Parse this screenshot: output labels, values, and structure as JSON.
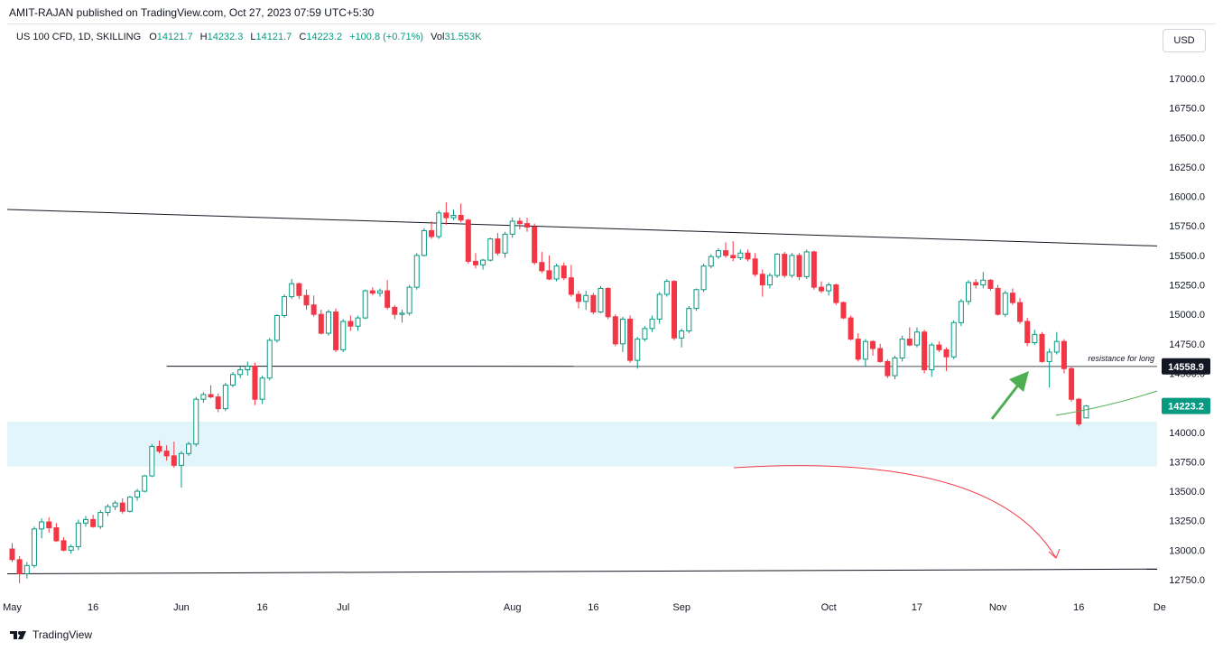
{
  "header": {
    "published": "AMIT-RAJAN published on TradingView.com, Oct 27, 2023 07:59 UTC+5:30",
    "symbol": "US 100 CFD, 1D, SKILLING",
    "ohlc": [
      {
        "label": "O",
        "value": "14121.7"
      },
      {
        "label": "H",
        "value": "14232.3"
      },
      {
        "label": "L",
        "value": "14121.7"
      },
      {
        "label": "C",
        "value": "14223.2"
      }
    ],
    "change": "+100.8 (+0.71%)",
    "volume_label": "Vol",
    "volume_value": "31.553K"
  },
  "currency_button": "USD",
  "footer_brand": "TradingView",
  "colors": {
    "up": "#089981",
    "down": "#f23645",
    "zone": "#e1f5fb",
    "arrow_up": "#4caf50",
    "arrow_down": "#f23645",
    "price_label": "#089981",
    "resistance_label": "#131722"
  },
  "chart_data": {
    "type": "candlestick",
    "y_ticks": [
      "17000.0",
      "16750.0",
      "16500.0",
      "16250.0",
      "16000.0",
      "15750.0",
      "15500.0",
      "15250.0",
      "15000.0",
      "14750.0",
      "14500.0",
      "14250.0",
      "14000.0",
      "13750.0",
      "13500.0",
      "13250.0",
      "13000.0",
      "12750.0"
    ],
    "ylim": [
      12650,
      17200
    ],
    "x_ticks": [
      {
        "label": "May",
        "day": 0
      },
      {
        "label": "16",
        "day": 11
      },
      {
        "label": "Jun",
        "day": 23
      },
      {
        "label": "16",
        "day": 34
      },
      {
        "label": "Jul",
        "day": 45
      },
      {
        "label": "Aug",
        "day": 68
      },
      {
        "label": "16",
        "day": 79
      },
      {
        "label": "Sep",
        "day": 91
      },
      {
        "label": "Oct",
        "day": 111
      },
      {
        "label": "17",
        "day": 123
      },
      {
        "label": "Nov",
        "day": 134
      },
      {
        "label": "16",
        "day": 145
      },
      {
        "label": "De",
        "day": 156
      }
    ],
    "candles": [
      [
        13010,
        13060,
        12900,
        12920
      ],
      [
        12920,
        12950,
        12720,
        12800
      ],
      [
        12800,
        12900,
        12760,
        12870
      ],
      [
        12870,
        13200,
        12850,
        13180
      ],
      [
        13180,
        13270,
        13100,
        13240
      ],
      [
        13240,
        13280,
        13150,
        13190
      ],
      [
        13190,
        13230,
        13070,
        13080
      ],
      [
        13080,
        13110,
        12990,
        13000
      ],
      [
        13000,
        13050,
        12970,
        13030
      ],
      [
        13030,
        13260,
        13000,
        13230
      ],
      [
        13230,
        13290,
        13200,
        13260
      ],
      [
        13260,
        13300,
        13190,
        13200
      ],
      [
        13200,
        13340,
        13180,
        13320
      ],
      [
        13320,
        13390,
        13290,
        13370
      ],
      [
        13370,
        13420,
        13340,
        13400
      ],
      [
        13400,
        13440,
        13310,
        13330
      ],
      [
        13330,
        13460,
        13320,
        13450
      ],
      [
        13450,
        13520,
        13420,
        13500
      ],
      [
        13500,
        13640,
        13490,
        13630
      ],
      [
        13630,
        13900,
        13620,
        13880
      ],
      [
        13880,
        13930,
        13820,
        13840
      ],
      [
        13840,
        13890,
        13760,
        13800
      ],
      [
        13800,
        13920,
        13700,
        13720
      ],
      [
        13720,
        13840,
        13530,
        13820
      ],
      [
        13820,
        13920,
        13800,
        13900
      ],
      [
        13900,
        14300,
        13880,
        14280
      ],
      [
        14280,
        14340,
        14250,
        14320
      ],
      [
        14320,
        14400,
        14290,
        14300
      ],
      [
        14300,
        14330,
        14170,
        14200
      ],
      [
        14200,
        14420,
        14180,
        14400
      ],
      [
        14400,
        14510,
        14380,
        14490
      ],
      [
        14490,
        14560,
        14460,
        14530
      ],
      [
        14530,
        14600,
        14480,
        14560
      ],
      [
        14560,
        14590,
        14230,
        14280
      ],
      [
        14280,
        14480,
        14240,
        14460
      ],
      [
        14460,
        14800,
        14440,
        14780
      ],
      [
        14780,
        15000,
        14760,
        14990
      ],
      [
        14990,
        15170,
        14970,
        15150
      ],
      [
        15150,
        15300,
        15130,
        15260
      ],
      [
        15260,
        15270,
        15130,
        15160
      ],
      [
        15160,
        15210,
        15040,
        15080
      ],
      [
        15080,
        15160,
        14980,
        15000
      ],
      [
        15000,
        15040,
        14830,
        14840
      ],
      [
        14840,
        15040,
        14820,
        15020
      ],
      [
        15020,
        15050,
        14680,
        14700
      ],
      [
        14700,
        14960,
        14680,
        14940
      ],
      [
        14940,
        14990,
        14860,
        14900
      ],
      [
        14900,
        14990,
        14860,
        14970
      ],
      [
        14970,
        15210,
        14960,
        15200
      ],
      [
        15200,
        15230,
        15160,
        15180
      ],
      [
        15180,
        15220,
        15150,
        15200
      ],
      [
        15200,
        15290,
        15040,
        15060
      ],
      [
        15060,
        15080,
        14960,
        15000
      ],
      [
        15000,
        15040,
        14930,
        15010
      ],
      [
        15010,
        15250,
        14990,
        15230
      ],
      [
        15230,
        15520,
        15210,
        15500
      ],
      [
        15500,
        15730,
        15490,
        15710
      ],
      [
        15710,
        15790,
        15640,
        15660
      ],
      [
        15660,
        15880,
        15640,
        15860
      ],
      [
        15860,
        15950,
        15760,
        15820
      ],
      [
        15820,
        15890,
        15800,
        15840
      ],
      [
        15840,
        15940,
        15780,
        15800
      ],
      [
        15800,
        15810,
        15430,
        15450
      ],
      [
        15450,
        15520,
        15390,
        15420
      ],
      [
        15420,
        15470,
        15380,
        15460
      ],
      [
        15460,
        15650,
        15450,
        15640
      ],
      [
        15640,
        15690,
        15500,
        15520
      ],
      [
        15520,
        15700,
        15480,
        15680
      ],
      [
        15680,
        15820,
        15650,
        15790
      ],
      [
        15790,
        15820,
        15720,
        15770
      ],
      [
        15770,
        15820,
        15700,
        15740
      ],
      [
        15740,
        15770,
        15420,
        15440
      ],
      [
        15440,
        15530,
        15350,
        15370
      ],
      [
        15370,
        15500,
        15290,
        15300
      ],
      [
        15300,
        15430,
        15280,
        15410
      ],
      [
        15410,
        15440,
        15290,
        15310
      ],
      [
        15310,
        15420,
        15150,
        15170
      ],
      [
        15170,
        15200,
        15050,
        15110
      ],
      [
        15110,
        15200,
        15040,
        15160
      ],
      [
        15160,
        15180,
        15000,
        15020
      ],
      [
        15020,
        15240,
        15010,
        15220
      ],
      [
        15220,
        15230,
        14960,
        14980
      ],
      [
        14980,
        15000,
        14730,
        14750
      ],
      [
        14750,
        14980,
        14680,
        14960
      ],
      [
        14960,
        14990,
        14590,
        14610
      ],
      [
        14610,
        14810,
        14540,
        14790
      ],
      [
        14790,
        14900,
        14770,
        14880
      ],
      [
        14880,
        14990,
        14850,
        14960
      ],
      [
        14960,
        15190,
        14920,
        15170
      ],
      [
        15170,
        15300,
        15150,
        15280
      ],
      [
        15280,
        15290,
        14780,
        14800
      ],
      [
        14800,
        14880,
        14720,
        14860
      ],
      [
        14860,
        15070,
        14840,
        15050
      ],
      [
        15050,
        15220,
        15030,
        15210
      ],
      [
        15210,
        15430,
        15190,
        15410
      ],
      [
        15410,
        15510,
        15390,
        15490
      ],
      [
        15490,
        15560,
        15470,
        15540
      ],
      [
        15540,
        15610,
        15480,
        15500
      ],
      [
        15500,
        15620,
        15450,
        15480
      ],
      [
        15480,
        15550,
        15460,
        15520
      ],
      [
        15520,
        15550,
        15450,
        15470
      ],
      [
        15470,
        15520,
        15320,
        15340
      ],
      [
        15340,
        15380,
        15150,
        15250
      ],
      [
        15250,
        15350,
        15220,
        15330
      ],
      [
        15330,
        15520,
        15310,
        15510
      ],
      [
        15510,
        15530,
        15310,
        15330
      ],
      [
        15330,
        15520,
        15310,
        15500
      ],
      [
        15500,
        15520,
        15290,
        15320
      ],
      [
        15320,
        15550,
        15300,
        15530
      ],
      [
        15530,
        15540,
        15210,
        15230
      ],
      [
        15230,
        15280,
        15180,
        15200
      ],
      [
        15200,
        15270,
        15160,
        15250
      ],
      [
        15250,
        15260,
        15080,
        15100
      ],
      [
        15100,
        15110,
        14960,
        14970
      ],
      [
        14970,
        14990,
        14780,
        14790
      ],
      [
        14790,
        14840,
        14600,
        14620
      ],
      [
        14620,
        14790,
        14560,
        14770
      ],
      [
        14770,
        14780,
        14650,
        14710
      ],
      [
        14710,
        14750,
        14590,
        14600
      ],
      [
        14600,
        14620,
        14460,
        14480
      ],
      [
        14480,
        14650,
        14450,
        14630
      ],
      [
        14630,
        14820,
        14600,
        14790
      ],
      [
        14790,
        14890,
        14730,
        14740
      ],
      [
        14740,
        14890,
        14720,
        14850
      ],
      [
        14850,
        14870,
        14500,
        14530
      ],
      [
        14530,
        14760,
        14470,
        14740
      ],
      [
        14740,
        14770,
        14680,
        14700
      ],
      [
        14700,
        14720,
        14520,
        14640
      ],
      [
        14640,
        14950,
        14620,
        14930
      ],
      [
        14930,
        15130,
        14900,
        15110
      ],
      [
        15110,
        15290,
        15080,
        15270
      ],
      [
        15270,
        15300,
        15220,
        15250
      ],
      [
        15250,
        15360,
        15220,
        15290
      ],
      [
        15290,
        15300,
        15200,
        15220
      ],
      [
        15220,
        15250,
        14990,
        15000
      ],
      [
        15000,
        15200,
        14980,
        15180
      ],
      [
        15180,
        15220,
        15080,
        15100
      ],
      [
        15100,
        15140,
        14920,
        14940
      ],
      [
        14940,
        14970,
        14730,
        14760
      ],
      [
        14760,
        14870,
        14740,
        14830
      ],
      [
        14830,
        14850,
        14590,
        14600
      ],
      [
        14600,
        14710,
        14380,
        14680
      ],
      [
        14680,
        14850,
        14660,
        14770
      ],
      [
        14770,
        14790,
        14500,
        14540
      ],
      [
        14540,
        14560,
        14260,
        14280
      ],
      [
        14280,
        14290,
        14050,
        14070
      ],
      [
        14121.7,
        14232.3,
        14121.7,
        14223.2
      ]
    ],
    "lines": [
      {
        "name": "",
        "points": [
          [
            -1.5,
            15890
          ],
          [
            167,
            15580
          ]
        ]
      },
      {
        "name": "",
        "points": [
          [
            21,
            14560
          ],
          [
            167,
            14559
          ]
        ]
      },
      {
        "name": "",
        "points": [
          [
            -1.5,
            12800
          ],
          [
            167,
            12840
          ]
        ]
      }
    ],
    "zone": {
      "from": 13710,
      "to": 14090
    },
    "annotations": [
      {
        "text": "resistance for long",
        "day": 155,
        "price": 14625
      },
      {
        "text": "14558.9",
        "price": 14558.9
      },
      {
        "text": "14223.2",
        "price": 14223.2
      }
    ]
  }
}
